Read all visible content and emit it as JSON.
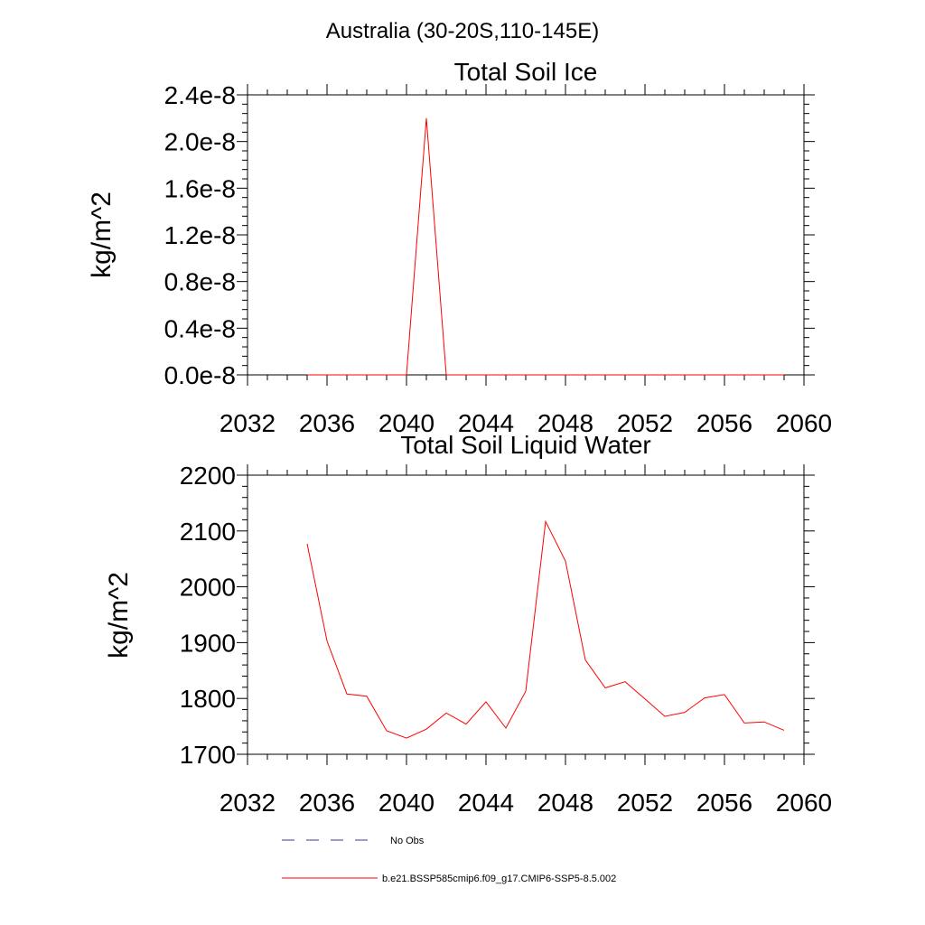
{
  "figure": {
    "title": "Australia (30-20S,110-145E)",
    "series_color": "#ff0000",
    "obs_color": "#3a3a8c"
  },
  "legend": {
    "obs_label": "No Obs",
    "model_label": "b.e21.BSSP585cmip6.f09_g17.CMIP6-SSP5-8.5.002"
  },
  "chart_data": [
    {
      "type": "line",
      "title": "Total Soil Ice",
      "xlabel": "",
      "ylabel": "kg/m^2",
      "xlim": [
        2032,
        2060
      ],
      "ylim": [
        0,
        2.4e-08
      ],
      "xticks": [
        "2032",
        "2036",
        "2040",
        "2044",
        "2048",
        "2052",
        "2056",
        "2060"
      ],
      "yticks": [
        "0.0e-8",
        "0.4e-8",
        "0.8e-8",
        "1.2e-8",
        "1.6e-8",
        "2.0e-8",
        "2.4e-8"
      ],
      "series": [
        {
          "name": "b.e21.BSSP585cmip6.f09_g17.CMIP6-SSP5-8.5.002",
          "x": [
            2035,
            2036,
            2037,
            2038,
            2039,
            2040,
            2041,
            2042,
            2043,
            2044,
            2045,
            2046,
            2047,
            2048,
            2049,
            2050,
            2051,
            2052,
            2053,
            2054,
            2055,
            2056,
            2057,
            2058,
            2059
          ],
          "values": [
            0,
            0,
            0,
            0,
            0,
            0,
            2.2e-08,
            0,
            0,
            0,
            0,
            0,
            0,
            0,
            0,
            0,
            0,
            0,
            0,
            0,
            0,
            0,
            0,
            0,
            0
          ]
        }
      ]
    },
    {
      "type": "line",
      "title": "Total Soil Liquid Water",
      "xlabel": "",
      "ylabel": "kg/m^2",
      "xlim": [
        2032,
        2060
      ],
      "ylim": [
        1700,
        2200
      ],
      "xticks": [
        "2032",
        "2036",
        "2040",
        "2044",
        "2048",
        "2052",
        "2056",
        "2060"
      ],
      "yticks": [
        "1700",
        "1800",
        "1900",
        "2000",
        "2100",
        "2200"
      ],
      "series": [
        {
          "name": "b.e21.BSSP585cmip6.f09_g17.CMIP6-SSP5-8.5.002",
          "x": [
            2035,
            2036,
            2037,
            2038,
            2039,
            2040,
            2041,
            2042,
            2043,
            2044,
            2045,
            2046,
            2047,
            2048,
            2049,
            2050,
            2051,
            2052,
            2053,
            2054,
            2055,
            2056,
            2057,
            2058,
            2059
          ],
          "values": [
            2077,
            1903,
            1808,
            1804,
            1742,
            1729,
            1745,
            1774,
            1754,
            1794,
            1747,
            1813,
            2117,
            2046,
            1869,
            1819,
            1830,
            1799,
            1768,
            1775,
            1801,
            1807,
            1756,
            1758,
            1743
          ]
        }
      ]
    }
  ]
}
